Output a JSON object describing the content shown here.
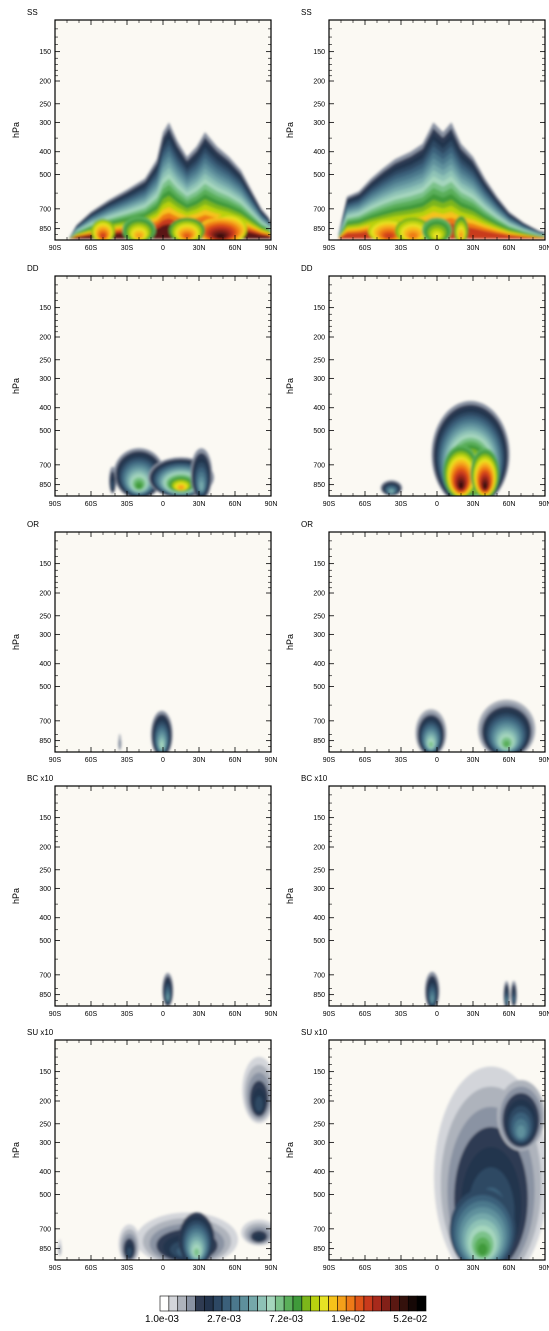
{
  "chart_data": {
    "type": "filled-contour",
    "panels": [
      {
        "title": "SS",
        "ylabel": "hPa"
      },
      {
        "title": "SS",
        "ylabel": "hPa"
      },
      {
        "title": "DD",
        "ylabel": "hPa"
      },
      {
        "title": "DD",
        "ylabel": "hPa"
      },
      {
        "title": "OR",
        "ylabel": "hPa"
      },
      {
        "title": "OR",
        "ylabel": "hPa"
      },
      {
        "title": "BC x10",
        "ylabel": "hPa"
      },
      {
        "title": "BC x10",
        "ylabel": "hPa"
      },
      {
        "title": "SU x10",
        "ylabel": "hPa"
      },
      {
        "title": "SU x10",
        "ylabel": "hPa"
      }
    ],
    "x_ticks": [
      "90S",
      "60S",
      "30S",
      "0",
      "30N",
      "60N",
      "90N"
    ],
    "y_ticks": [
      "150",
      "200",
      "250",
      "300",
      "400",
      "500",
      "700",
      "850"
    ],
    "colorbar": {
      "labels": [
        "1.0e-03",
        "2.7e-03",
        "7.2e-03",
        "1.9e-02",
        "5.2e-02"
      ],
      "colors": [
        "#ffffff",
        "#d3d5da",
        "#aeb3bc",
        "#8a93a3",
        "#2f3b52",
        "#23344d",
        "#2d4864",
        "#3b607a",
        "#4b788c",
        "#5e909c",
        "#75a8aa",
        "#8ec2b6",
        "#a5d6bd",
        "#7cc28a",
        "#5aaf5a",
        "#3f9a3a",
        "#7cb61a",
        "#b9d10f",
        "#e6e224",
        "#f6c21a",
        "#f4a01a",
        "#ee7a17",
        "#df5418",
        "#c93a1c",
        "#a82a1c",
        "#822018",
        "#5a1812",
        "#34110c",
        "#160806",
        "#000000"
      ]
    }
  }
}
